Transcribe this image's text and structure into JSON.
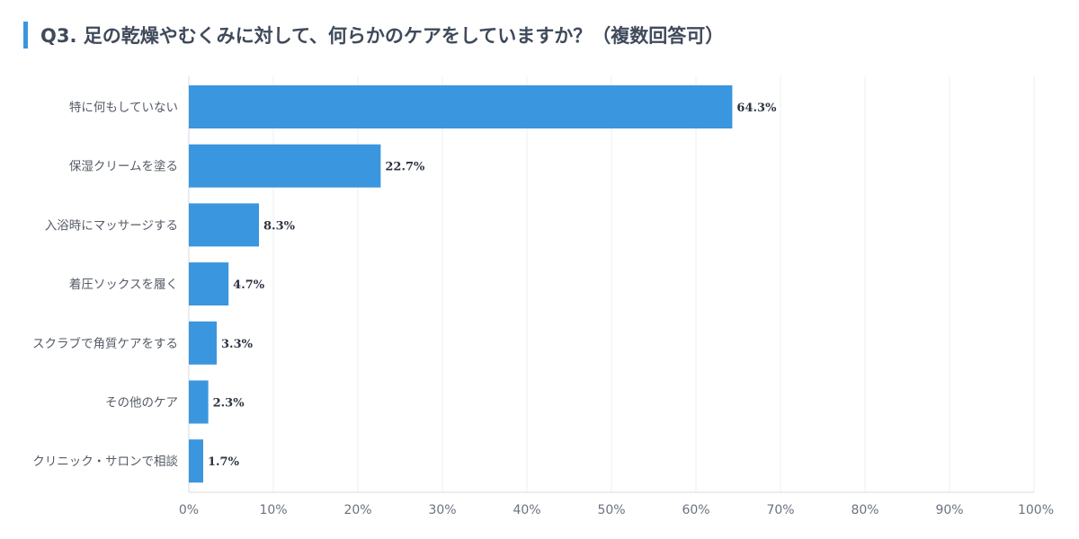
{
  "chart_data": {
    "type": "bar",
    "orientation": "horizontal",
    "title": "Q3. 足の乾燥やむくみに対して、何らかのケアをしていますか？（複数回答可）",
    "categories": [
      "特に何もしていない",
      "保湿クリームを塗る",
      "入浴時にマッサージする",
      "着圧ソックスを履く",
      "スクラブで角質ケアをする",
      "その他のケア",
      "クリニック・サロンで相談"
    ],
    "values": [
      64.3,
      22.7,
      8.3,
      4.7,
      3.3,
      2.3,
      1.7
    ],
    "value_labels": [
      "64.3%",
      "22.7%",
      "8.3%",
      "4.7%",
      "3.3%",
      "2.3%",
      "1.7%"
    ],
    "xlim": [
      0,
      100
    ],
    "x_ticks": [
      0,
      10,
      20,
      30,
      40,
      50,
      60,
      70,
      80,
      90,
      100
    ],
    "x_tick_labels": [
      "0%",
      "10%",
      "20%",
      "30%",
      "40%",
      "50%",
      "60%",
      "70%",
      "80%",
      "90%",
      "100%"
    ],
    "xlabel": "",
    "ylabel": "",
    "grid": true,
    "legend": "none",
    "colors": {
      "bar": "#3a96de",
      "accent": "#3a96de",
      "grid": "#eeeff3",
      "axis": "#d7dae0"
    }
  }
}
